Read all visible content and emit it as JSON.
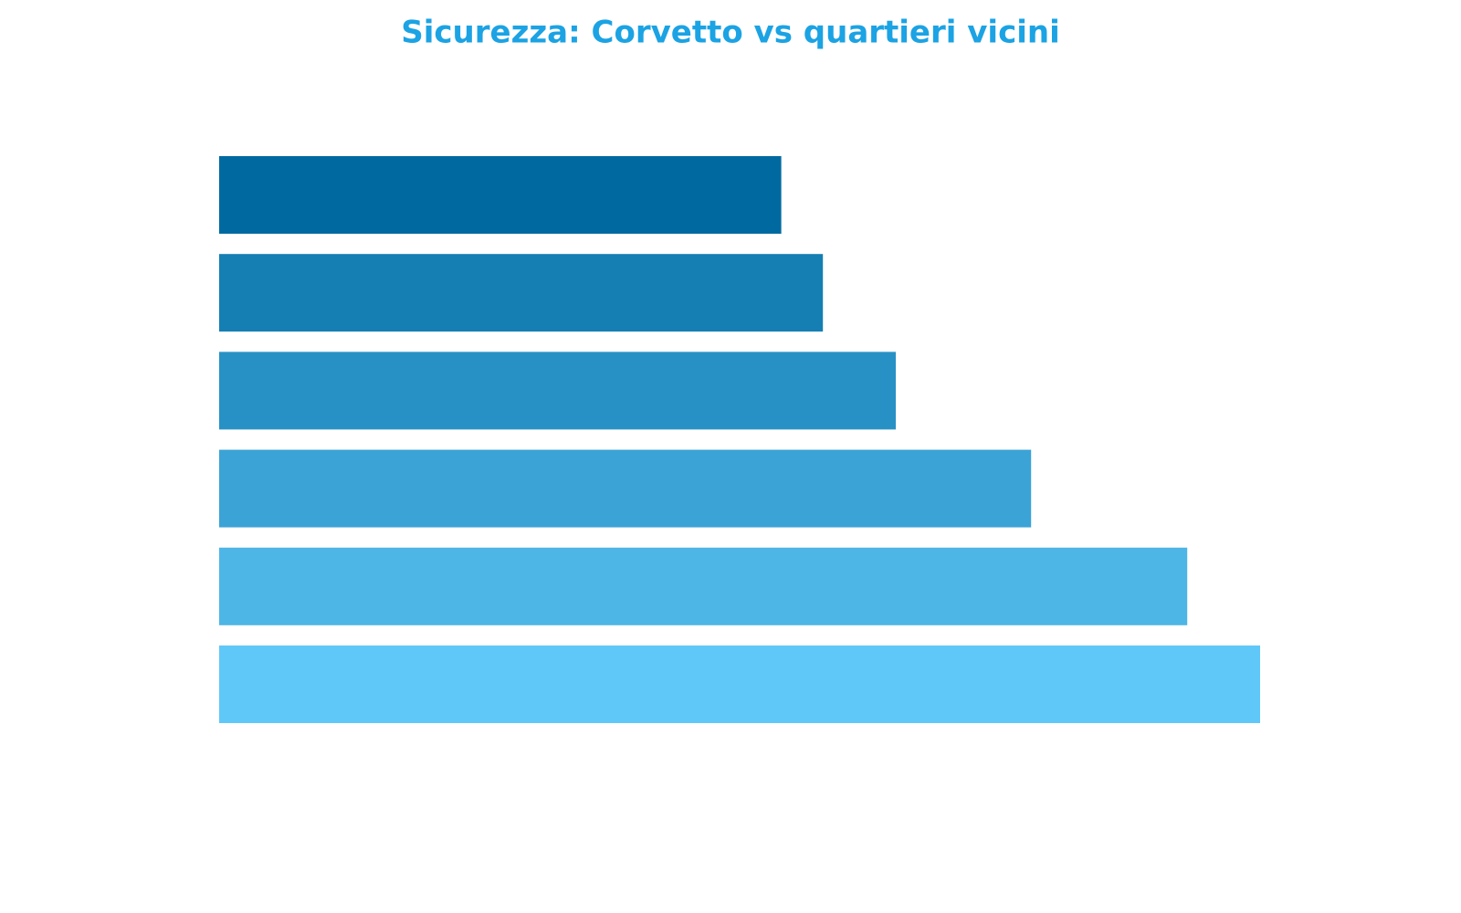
{
  "chart_data": {
    "type": "bar",
    "orientation": "horizontal",
    "title": "Sicurezza: Corvetto vs quartieri vicini",
    "categories": [
      null,
      null,
      null,
      null,
      null,
      null
    ],
    "values": [
      5.4,
      5.8,
      6.5,
      7.8,
      9.3,
      10.0
    ],
    "colors": [
      "#0069a0",
      "#157fb3",
      "#2791c6",
      "#3ba3d6",
      "#4db6e6",
      "#60c8f8"
    ]
  }
}
